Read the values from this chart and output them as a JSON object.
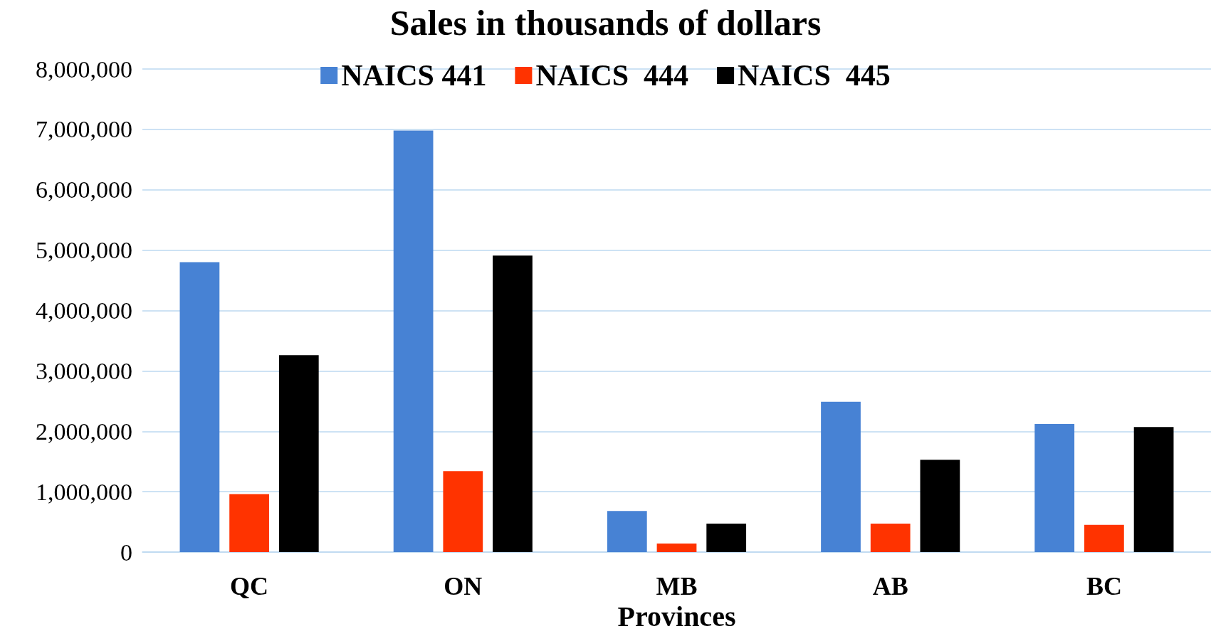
{
  "chart_data": {
    "type": "bar",
    "title": "Sales in thousands of dollars",
    "xlabel": "Provinces",
    "categories": [
      "QC",
      "ON",
      "MB",
      "AB",
      "BC"
    ],
    "series": [
      {
        "name": "NAICS 441",
        "color": "#4782d4",
        "values": [
          4800000,
          6980000,
          680000,
          2490000,
          2120000
        ]
      },
      {
        "name": "NAICS  444",
        "color": "#ff3300",
        "values": [
          960000,
          1340000,
          140000,
          470000,
          450000
        ]
      },
      {
        "name": "NAICS  445",
        "color": "#000000",
        "values": [
          3260000,
          4910000,
          470000,
          1530000,
          2070000
        ]
      }
    ],
    "ylim": [
      0,
      8000000
    ],
    "yticks": [
      0,
      {
        "value": 1000000,
        "label": "1,000,000"
      },
      {
        "value": 2000000,
        "label": "2,000,000"
      },
      {
        "value": 3000000,
        "label": "3,000,000"
      },
      {
        "value": 4000000,
        "label": "4,000,000"
      },
      {
        "value": 5000000,
        "label": "5,000,000"
      },
      {
        "value": 6000000,
        "label": "6,000,000"
      },
      {
        "value": 7000000,
        "label": "7,000,000"
      },
      {
        "value": 8000000,
        "label": "8,000,000"
      }
    ],
    "grid": "y",
    "legend": "top"
  }
}
